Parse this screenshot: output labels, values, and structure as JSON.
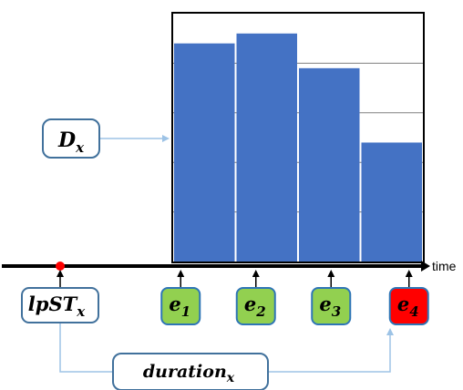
{
  "timeline_label": "time",
  "d_box": {
    "base": "D",
    "sub": "x"
  },
  "lpst_box": {
    "base": "lpST",
    "sub": "x"
  },
  "duration_box": {
    "base": "duration",
    "sub": "x"
  },
  "events": [
    {
      "base": "e",
      "sub": "1",
      "fill": "#92d050"
    },
    {
      "base": "e",
      "sub": "2",
      "fill": "#92d050"
    },
    {
      "base": "e",
      "sub": "3",
      "fill": "#92d050"
    },
    {
      "base": "e",
      "sub": "4",
      "fill": "#ff0000"
    }
  ],
  "chart_data": {
    "type": "bar",
    "values": [
      0.88,
      0.92,
      0.78,
      0.48
    ],
    "ylim": [
      0,
      1
    ],
    "bar_color": "#4472c4",
    "grid": true
  },
  "colors": {
    "box_border": "#41719c",
    "connector": "#9dc3e6",
    "event_border": "#2e75b6",
    "lpst_marker": "#ff0000",
    "timeline": "#000000"
  }
}
